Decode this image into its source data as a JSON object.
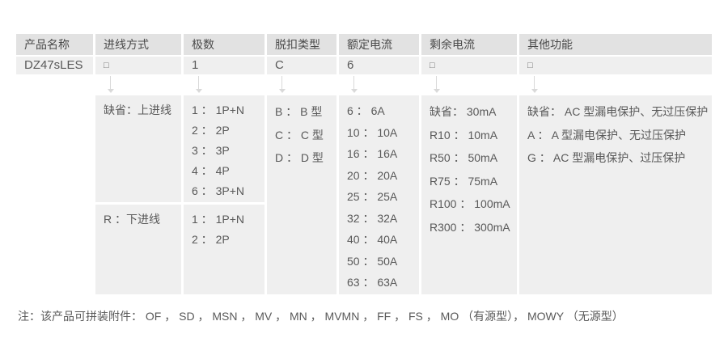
{
  "colors": {
    "header_bg": "#e2e2e2",
    "cell_bg": "#efefef",
    "arrow": "#d9d9d9",
    "header_text": "#4a4a4a",
    "body_text": "#595959",
    "page_bg": "#ffffff"
  },
  "table": {
    "headers": [
      "产品名称",
      "进线方式",
      "极数",
      "脱扣类型",
      "额定电流",
      "剩余电流",
      "其他功能"
    ],
    "selection": {
      "product_name": "DZ47sLES",
      "inlet": "□",
      "poles": "1",
      "trip": "C",
      "current": "6",
      "residual": "□",
      "other": "□"
    },
    "options": {
      "inlet_top": "缺省：上进线",
      "inlet_bottom": "R ：下进线",
      "poles_top": [
        "1 ： 1P+N",
        "2 ： 2P",
        "3 ： 3P",
        "4 ： 4P",
        "6 ： 3P+N"
      ],
      "poles_bottom": [
        "1 ： 1P+N",
        "2 ： 2P"
      ],
      "trip": [
        "B ： B 型",
        "C ： C 型",
        "D ： D 型"
      ],
      "current": [
        "6 ： 6A",
        "10 ： 10A",
        "16 ： 16A",
        "20 ： 20A",
        "25 ： 25A",
        "32 ： 32A",
        "40 ： 40A",
        "50 ： 50A",
        "63 ： 63A"
      ],
      "residual": [
        "缺省： 30mA",
        "R10 ： 10mA",
        "R50 ： 50mA",
        "R75 ： 75mA",
        "R100 ： 100mA",
        "R300 ： 300mA"
      ],
      "other": [
        "缺省： AC 型漏电保护、无过压保护",
        "A ： A 型漏电保护、无过压保护",
        "G ： AC 型漏电保护、过压保护"
      ]
    }
  },
  "note": "注：该产品可拼装附件： OF ， SD ， MSN ， MV ， MN ， MVMN ， FF ， FS ， MO （有源型）， MOWY （无源型）"
}
